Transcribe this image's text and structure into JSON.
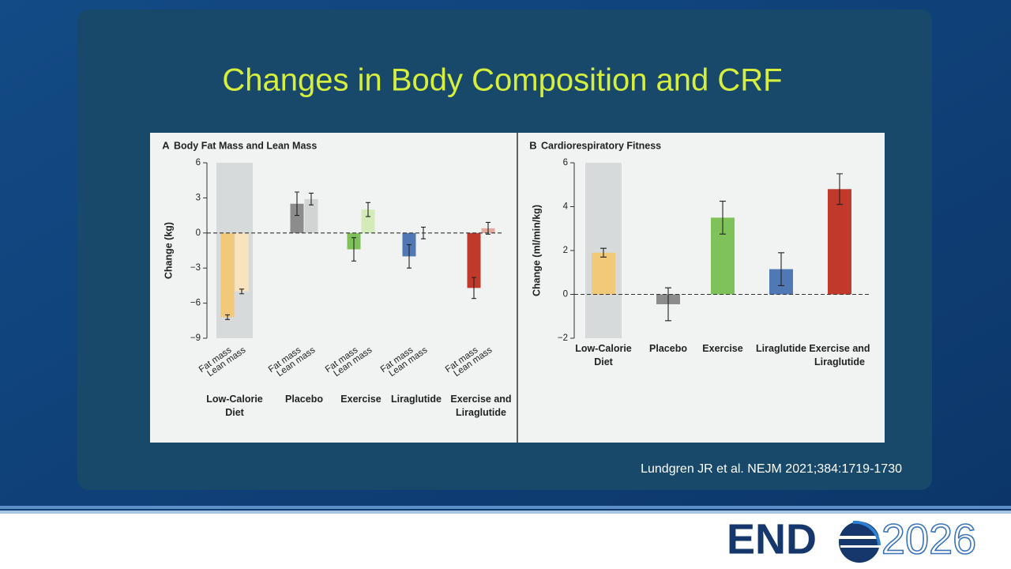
{
  "slide_title": "Changes in Body Composition and CRF",
  "citation": "Lundgren JR et al. NEJM 2021;384:1719-1730",
  "logo": {
    "left": "END",
    "right": "2026"
  },
  "chart_data": [
    {
      "type": "bar",
      "panel_label": "A",
      "title": "Body Fat Mass and Lean Mass",
      "ylabel": "Change (kg)",
      "categories": [
        "Low-Calorie Diet",
        "Placebo",
        "Exercise",
        "Liraglutide",
        "Exercise and Liraglutide"
      ],
      "series": [
        {
          "name": "Fat mass",
          "colors": [
            "#f2c879",
            "#8c8c8c",
            "#7fc25a",
            "#4f78b5",
            "#c0392b"
          ],
          "values": [
            -7.2,
            2.5,
            -1.4,
            -2.0,
            -4.7
          ],
          "errors": [
            0.2,
            1.0,
            1.0,
            1.0,
            0.9
          ]
        },
        {
          "name": "Lean mass",
          "colors": [
            "#f8e3bd",
            "#d2d4d4",
            "#d4eab8",
            "#b9c9e3",
            "#e2a99c"
          ],
          "values": [
            -5.0,
            2.9,
            2.0,
            0.0,
            0.4
          ],
          "errors": [
            0.2,
            0.5,
            0.6,
            0.5,
            0.5
          ]
        }
      ],
      "ylim": [
        -9,
        6
      ],
      "yticks": [
        {
          "value": -9,
          "label": "−9"
        },
        {
          "value": -6,
          "label": "−6"
        },
        {
          "value": -3,
          "label": "−3"
        },
        0,
        3,
        6
      ],
      "highlight_category": 0,
      "zero_line": true
    },
    {
      "type": "bar",
      "panel_label": "B",
      "title": "Cardiorespiratory Fitness",
      "ylabel": "Change (ml/min/kg)",
      "categories": [
        "Low-Calorie Diet",
        "Placebo",
        "Exercise",
        "Liraglutide",
        "Exercise and Liraglutide"
      ],
      "values": [
        1.9,
        -0.45,
        3.5,
        1.15,
        4.8
      ],
      "errors": [
        0.2,
        0.75,
        0.75,
        0.75,
        0.7
      ],
      "colors": [
        "#f2c879",
        "#8c8c8c",
        "#7fc25a",
        "#4f78b5",
        "#c0392b"
      ],
      "ylim": [
        -2,
        6
      ],
      "yticks": [
        {
          "value": -2,
          "label": "−2"
        },
        0,
        2,
        4,
        6
      ],
      "highlight_category": 0,
      "zero_line": true
    }
  ]
}
